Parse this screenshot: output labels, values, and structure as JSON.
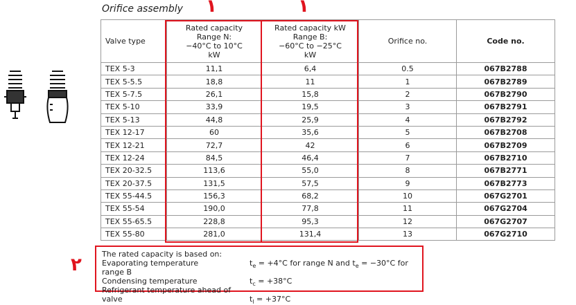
{
  "title": "Orifice assembly",
  "annotations": {
    "column_2_mark": "۱",
    "column_3_mark": "۱",
    "note_mark": "۲"
  },
  "table": {
    "header": [
      [
        "Valve type"
      ],
      [
        "Rated capacity",
        "Range N:",
        "−40°C to 10°C",
        "kW"
      ],
      [
        "Rated capacity kW",
        "Range B:",
        "−60°C to −25°C",
        "kW"
      ],
      [
        "Orifice no."
      ],
      [
        "Code no."
      ]
    ],
    "rows": [
      [
        "TEX 5-3",
        "11,1",
        "6,4",
        "0.5",
        "067B2788"
      ],
      [
        "TEX 5-5.5",
        "18,8",
        "11",
        "1",
        "067B2789"
      ],
      [
        "TEX 5-7.5",
        "26,1",
        "15,8",
        "2",
        "067B2790"
      ],
      [
        "TEX 5-10",
        "33,9",
        "19,5",
        "3",
        "067B2791"
      ],
      [
        "TEX 5-13",
        "44,8",
        "25,9",
        "4",
        "067B2792"
      ],
      [
        "TEX 12-17",
        "60",
        "35,6",
        "5",
        "067B2708"
      ],
      [
        "TEX 12-21",
        "72,7",
        "42",
        "6",
        "067B2709"
      ],
      [
        "TEX 12-24",
        "84,5",
        "46,4",
        "7",
        "067B2710"
      ],
      [
        "TEX 20-32.5",
        "113,6",
        "55,0",
        "8",
        "067B2771"
      ],
      [
        "TEX 20-37.5",
        "131,5",
        "57,5",
        "9",
        "067B2773"
      ],
      [
        "TEX 55-44.5",
        "156,3",
        "68,2",
        "10",
        "067G2701"
      ],
      [
        "TEX 55-54",
        "190,0",
        "77,8",
        "11",
        "067G2704"
      ],
      [
        "TEX 55-65.5",
        "228,8",
        "95,3",
        "12",
        "067G2707"
      ],
      [
        "TEX 55-80",
        "281,0",
        "131,4",
        "13",
        "067G2710"
      ]
    ]
  },
  "note": {
    "intro": "The rated capacity is based on:",
    "lines": [
      {
        "label": "Evaporating temperature",
        "symbol": "t",
        "sub": "e",
        "text": " = +4°C for range N and t",
        "sub2": "e",
        "text2": " = −30°C for range B"
      },
      {
        "label": "Condensing temperature",
        "symbol": "t",
        "sub": "c",
        "text": " = +38°C"
      },
      {
        "label": "Refrigerant temperature ahead of valve",
        "symbol": "t",
        "sub": "l",
        "text": " = +37°C"
      }
    ]
  }
}
